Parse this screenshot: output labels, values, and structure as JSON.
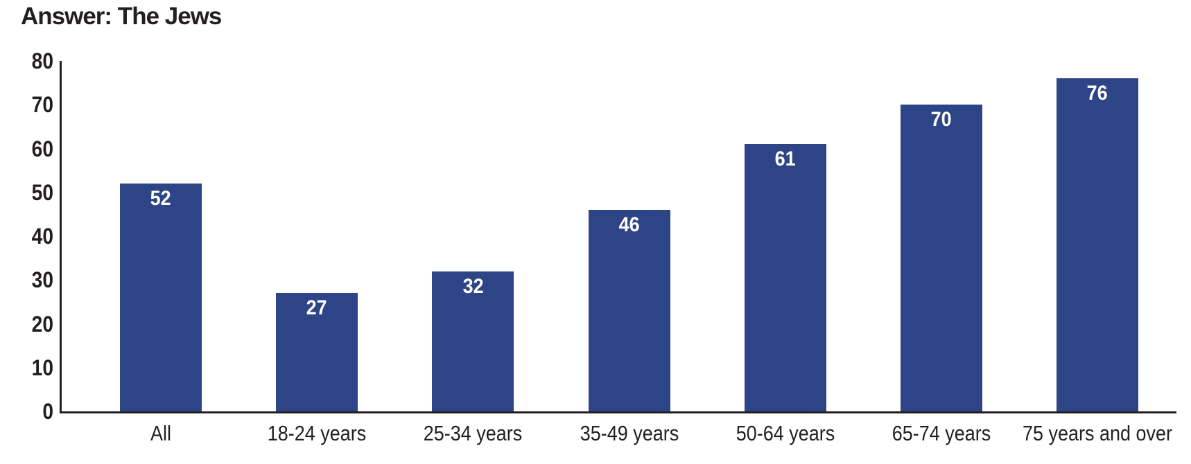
{
  "title": "Answer: The Jews",
  "chart_data": {
    "type": "bar",
    "title": "Answer: The Jews",
    "categories": [
      "All",
      "18-24 years",
      "25-34 years",
      "35-49 years",
      "50-64 years",
      "65-74 years",
      "75 years and over"
    ],
    "values": [
      52,
      27,
      32,
      46,
      61,
      70,
      76
    ],
    "xlabel": "",
    "ylabel": "",
    "ylim": [
      0,
      80
    ],
    "yticks": [
      0,
      10,
      20,
      30,
      40,
      50,
      60,
      70,
      80
    ],
    "grid": false,
    "legend": false,
    "bar_value_labels_inside": true,
    "colors": {
      "bar": "#2d4586",
      "bar_label": "#ffffff",
      "axis": "#231f20",
      "text": "#231f20",
      "background": "#ffffff"
    }
  }
}
